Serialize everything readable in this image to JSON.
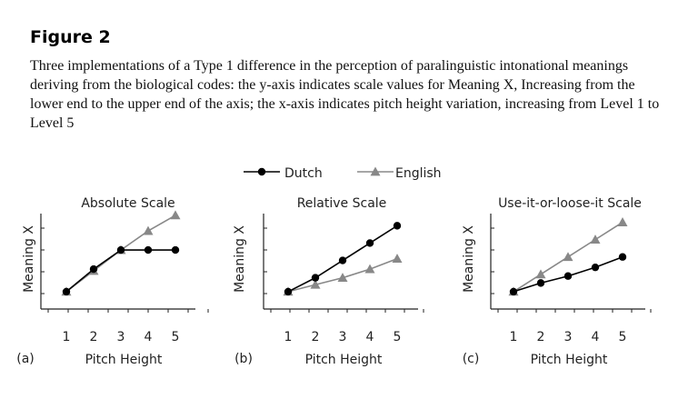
{
  "figure_title": "Figure 2",
  "caption": "Three implementations of a Type 1 difference in the perception of paralinguistic intonational meanings deriving from the biological codes: the y-axis indicates scale values for Meaning X, Increasing from the lower end to the upper end of the axis; the x-axis indicates pitch height variation, increasing from Level 1 to Level 5",
  "legend": [
    {
      "name": "Dutch",
      "marker": "circle",
      "color": "#000000"
    },
    {
      "name": "English",
      "marker": "triangle",
      "color": "#888888"
    }
  ],
  "chart_data": [
    {
      "type": "line",
      "panel_label": "(a)",
      "title": "Absolute Scale",
      "xlabel": "Pitch Height",
      "ylabel": "Meaning X",
      "x": [
        1,
        2,
        3,
        4,
        5
      ],
      "xlim": [
        0.5,
        5.5
      ],
      "ylim": [
        0,
        5.5
      ],
      "series": [
        {
          "name": "Dutch",
          "values": [
            1.0,
            2.3,
            3.4,
            3.4,
            3.4
          ]
        },
        {
          "name": "English",
          "values": [
            1.0,
            2.2,
            3.4,
            4.5,
            5.4
          ]
        }
      ]
    },
    {
      "type": "line",
      "panel_label": "(b)",
      "title": "Relative Scale",
      "xlabel": "Pitch Height",
      "ylabel": "Meaning X",
      "x": [
        1,
        2,
        3,
        4,
        5
      ],
      "xlim": [
        0.5,
        5.5
      ],
      "ylim": [
        0,
        5.5
      ],
      "series": [
        {
          "name": "Dutch",
          "values": [
            1.0,
            1.8,
            2.8,
            3.8,
            4.8
          ]
        },
        {
          "name": "English",
          "values": [
            1.0,
            1.4,
            1.8,
            2.3,
            2.9
          ]
        }
      ]
    },
    {
      "type": "line",
      "panel_label": "(c)",
      "title": "Use-it-or-loose-it Scale",
      "xlabel": "Pitch Height",
      "ylabel": "Meaning X",
      "x": [
        1,
        2,
        3,
        4,
        5
      ],
      "xlim": [
        0.5,
        5.5
      ],
      "ylim": [
        0,
        5.5
      ],
      "series": [
        {
          "name": "Dutch",
          "values": [
            1.0,
            1.5,
            1.9,
            2.4,
            3.0
          ]
        },
        {
          "name": "English",
          "values": [
            1.0,
            2.0,
            3.0,
            4.0,
            5.0
          ]
        }
      ]
    }
  ]
}
